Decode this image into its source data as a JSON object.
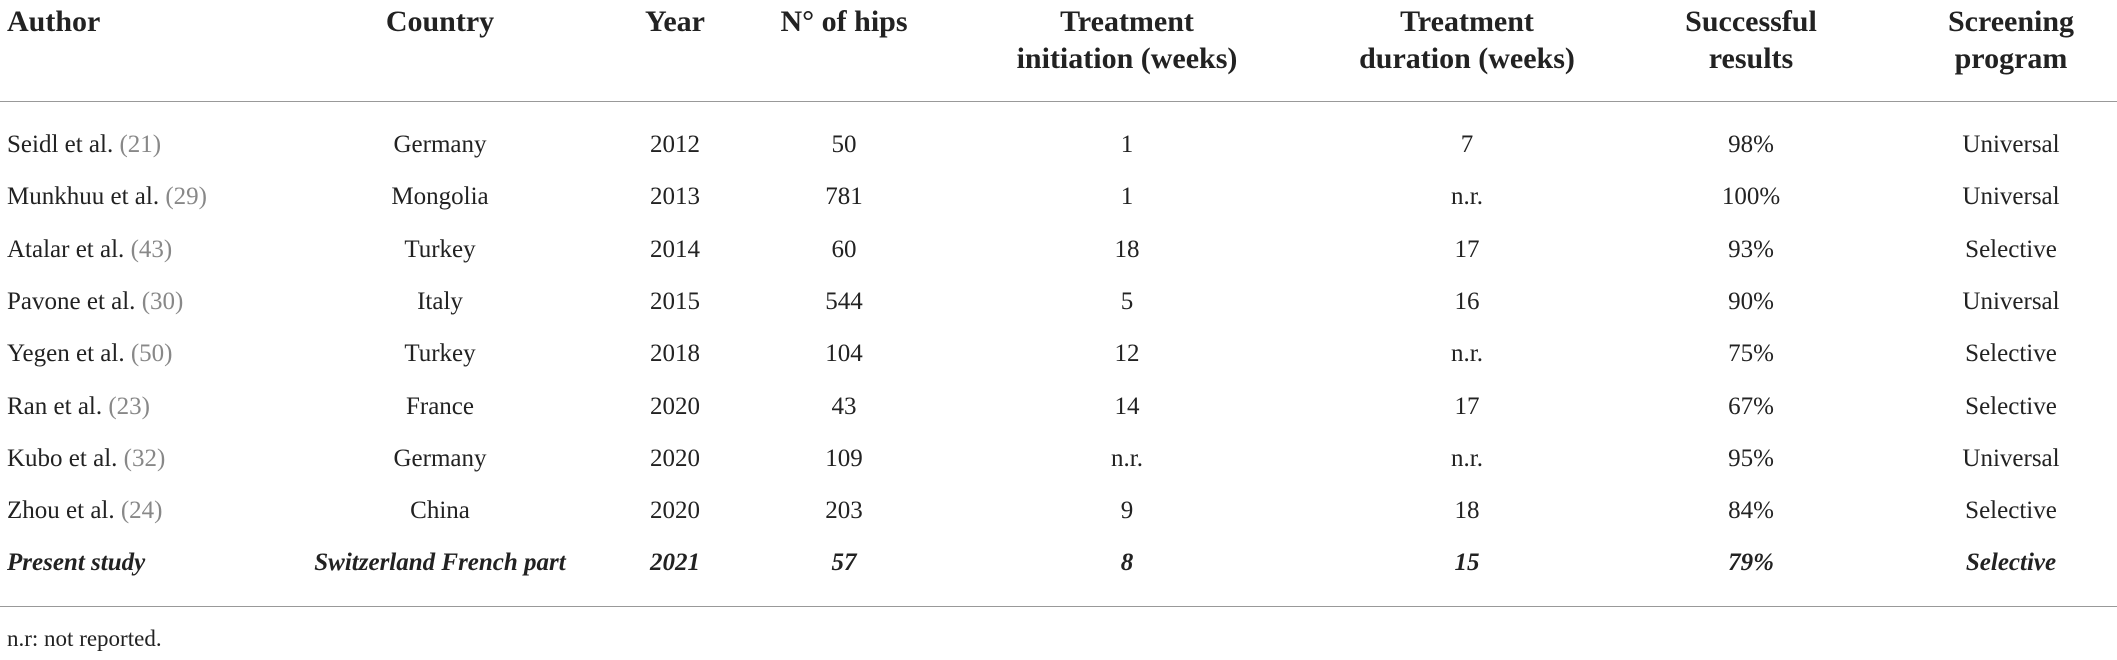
{
  "table": {
    "header": [
      [
        "Author"
      ],
      [
        "Country"
      ],
      [
        "Year"
      ],
      [
        "N° of hips"
      ],
      [
        "Treatment",
        "initiation (weeks)"
      ],
      [
        "Treatment",
        "duration (weeks)"
      ],
      [
        "Successful",
        "results"
      ],
      [
        "Screening",
        "program"
      ]
    ],
    "rows": [
      [
        {
          "name": "Seidl et al.",
          "ref": "(21)"
        },
        "Germany",
        2012,
        50,
        1,
        7,
        "98%",
        "Universal"
      ],
      [
        {
          "name": "Munkhuu et al.",
          "ref": "(29)"
        },
        "Mongolia",
        2013,
        781,
        1,
        "n.r.",
        "100%",
        "Universal"
      ],
      [
        {
          "name": "Atalar et al.",
          "ref": "(43)"
        },
        "Turkey",
        2014,
        60,
        18,
        17,
        "93%",
        "Selective"
      ],
      [
        {
          "name": "Pavone et al.",
          "ref": "(30)"
        },
        "Italy",
        2015,
        544,
        5,
        16,
        "90%",
        "Universal"
      ],
      [
        {
          "name": "Yegen et al.",
          "ref": "(50)"
        },
        "Turkey",
        2018,
        104,
        12,
        "n.r.",
        "75%",
        "Selective"
      ],
      [
        {
          "name": "Ran et al.",
          "ref": "(23)"
        },
        "France",
        2020,
        43,
        14,
        17,
        "67%",
        "Selective"
      ],
      [
        {
          "name": "Kubo et al.",
          "ref": "(32)"
        },
        "Germany",
        2020,
        109,
        "n.r.",
        "n.r.",
        "95%",
        "Universal"
      ],
      [
        {
          "name": "Zhou et al.",
          "ref": "(24)"
        },
        "China",
        2020,
        203,
        9,
        18,
        "84%",
        "Selective"
      ],
      [
        "Present study",
        "Switzerland French part",
        2021,
        57,
        8,
        15,
        "79%",
        "Selective"
      ]
    ],
    "footnote": "n.r: not reported."
  }
}
